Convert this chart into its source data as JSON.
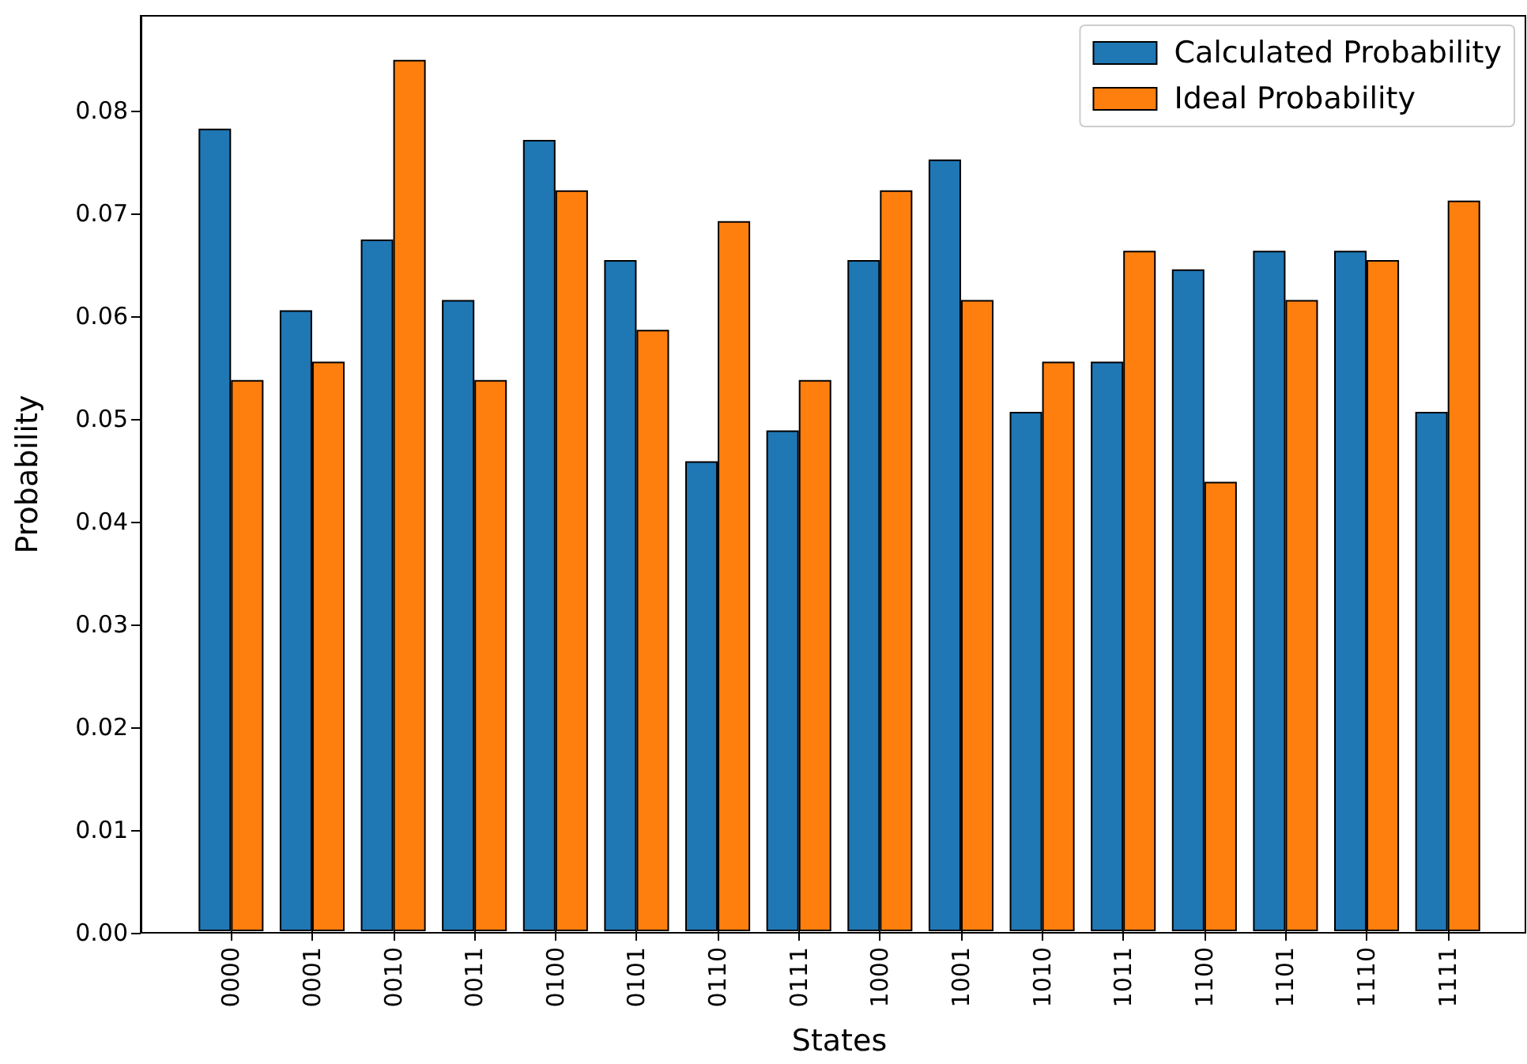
{
  "chart_data": {
    "type": "bar",
    "categories": [
      "0000",
      "0001",
      "0010",
      "0011",
      "0100",
      "0101",
      "0110",
      "0111",
      "1000",
      "1001",
      "1010",
      "1011",
      "1100",
      "1101",
      "1110",
      "1111"
    ],
    "series": [
      {
        "name": "Calculated Probability",
        "color": "#1f77b4",
        "values": [
          0.0782,
          0.0605,
          0.0674,
          0.0615,
          0.0771,
          0.0654,
          0.0458,
          0.0488,
          0.0654,
          0.0752,
          0.0506,
          0.0555,
          0.0645,
          0.0663,
          0.0663,
          0.0506
        ]
      },
      {
        "name": "Ideal Probability",
        "color": "#ff7f0e",
        "values": [
          0.0537,
          0.0555,
          0.0849,
          0.0537,
          0.0722,
          0.0586,
          0.0692,
          0.0537,
          0.0722,
          0.0615,
          0.0555,
          0.0663,
          0.0438,
          0.0615,
          0.0654,
          0.0712
        ]
      }
    ],
    "xlabel": "States",
    "ylabel": "Probability",
    "ylim": [
      0,
      0.0892
    ],
    "yticks": [
      {
        "value": 0,
        "label": "0.00"
      },
      0.01,
      0.02,
      0.03,
      0.04,
      0.05,
      0.06,
      0.07,
      0.08
    ],
    "legend": "top right"
  }
}
